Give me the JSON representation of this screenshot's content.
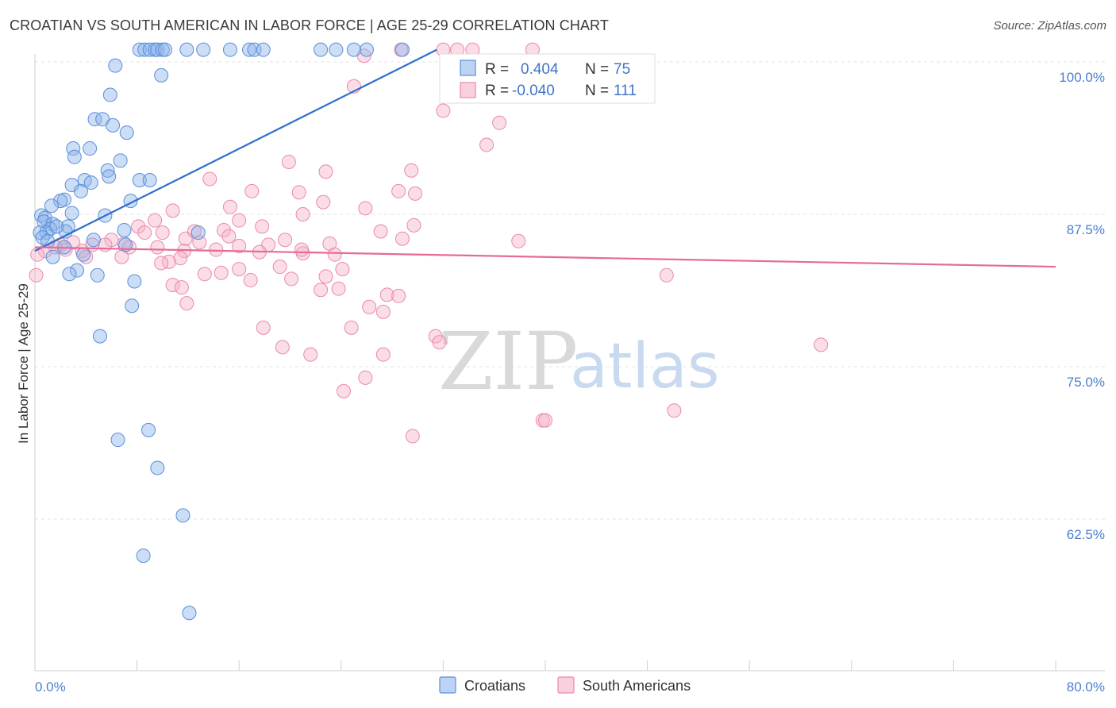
{
  "title": "CROATIAN VS SOUTH AMERICAN IN LABOR FORCE | AGE 25-29 CORRELATION CHART",
  "source": "Source: ZipAtlas.com",
  "watermark": {
    "zip": "ZIP",
    "atlas": "atlas"
  },
  "chart_data": {
    "type": "scatter",
    "ylabel": "In Labor Force | Age 25-29",
    "xlim": [
      0,
      80
    ],
    "ylim": [
      50,
      102
    ],
    "x_tick_labels": [
      "0.0%",
      "80.0%"
    ],
    "y_ticks": [
      {
        "value": 62.5,
        "label": "62.5%"
      },
      {
        "value": 75.0,
        "label": "75.0%"
      },
      {
        "value": 87.5,
        "label": "87.5%"
      },
      {
        "value": 100.0,
        "label": "100.0%"
      }
    ],
    "series": [
      {
        "name": "Croatians",
        "color": "#8fb4ea",
        "stroke": "#5a8fd8",
        "line_color": "#2f6fce",
        "R": "0.404",
        "N": "75",
        "trend": {
          "x": [
            0,
            31.5
          ],
          "y": [
            84.5,
            101.0
          ]
        },
        "points": [
          [
            8.2,
            101
          ],
          [
            8.6,
            101
          ],
          [
            9.0,
            101
          ],
          [
            9.4,
            101
          ],
          [
            9.6,
            101
          ],
          [
            10.0,
            101
          ],
          [
            10.2,
            101
          ],
          [
            11.9,
            101
          ],
          [
            13.2,
            101
          ],
          [
            15.3,
            101
          ],
          [
            16.8,
            101
          ],
          [
            17.2,
            101
          ],
          [
            17.9,
            101
          ],
          [
            22.4,
            101
          ],
          [
            23.6,
            101
          ],
          [
            25.0,
            101
          ],
          [
            26.0,
            101
          ],
          [
            28.8,
            101
          ],
          [
            6.3,
            99.7
          ],
          [
            9.9,
            98.9
          ],
          [
            5.9,
            97.3
          ],
          [
            4.7,
            95.3
          ],
          [
            5.3,
            95.3
          ],
          [
            6.1,
            94.8
          ],
          [
            7.2,
            94.2
          ],
          [
            3.0,
            92.9
          ],
          [
            4.3,
            92.9
          ],
          [
            3.1,
            92.2
          ],
          [
            6.7,
            91.9
          ],
          [
            5.7,
            91.1
          ],
          [
            5.8,
            90.6
          ],
          [
            3.9,
            90.3
          ],
          [
            4.4,
            90.1
          ],
          [
            8.2,
            90.3
          ],
          [
            9.0,
            90.3
          ],
          [
            2.9,
            89.9
          ],
          [
            3.6,
            89.4
          ],
          [
            7.5,
            88.6
          ],
          [
            2.3,
            88.7
          ],
          [
            2.0,
            88.6
          ],
          [
            1.3,
            88.2
          ],
          [
            2.9,
            87.6
          ],
          [
            0.5,
            87.4
          ],
          [
            0.8,
            87.2
          ],
          [
            5.5,
            87.4
          ],
          [
            0.7,
            86.9
          ],
          [
            1.4,
            86.7
          ],
          [
            2.6,
            86.5
          ],
          [
            1.2,
            86.3
          ],
          [
            2.4,
            86.1
          ],
          [
            7.0,
            86.2
          ],
          [
            12.8,
            86.0
          ],
          [
            0.9,
            86.0
          ],
          [
            1.7,
            86.5
          ],
          [
            0.4,
            86.0
          ],
          [
            0.6,
            85.6
          ],
          [
            1.0,
            85.3
          ],
          [
            2.3,
            84.8
          ],
          [
            4.6,
            85.4
          ],
          [
            7.1,
            85.0
          ],
          [
            3.8,
            84.2
          ],
          [
            1.4,
            84.0
          ],
          [
            3.3,
            82.9
          ],
          [
            2.7,
            82.6
          ],
          [
            4.9,
            82.5
          ],
          [
            7.8,
            82.0
          ],
          [
            7.6,
            80.0
          ],
          [
            5.1,
            77.5
          ],
          [
            6.5,
            69.0
          ],
          [
            8.9,
            69.8
          ],
          [
            9.6,
            66.7
          ],
          [
            11.6,
            62.8
          ],
          [
            8.5,
            59.5
          ],
          [
            12.1,
            54.8
          ]
        ]
      },
      {
        "name": "South Americans",
        "color": "#f6b3c9",
        "stroke": "#ea89aa",
        "line_color": "#e56b98",
        "R": "-0.040",
        "N": "111",
        "trend": {
          "x": [
            0,
            80
          ],
          "y": [
            84.8,
            83.2
          ]
        },
        "points": [
          [
            28.7,
            101
          ],
          [
            32.0,
            101
          ],
          [
            33.1,
            101
          ],
          [
            34.3,
            101
          ],
          [
            39.0,
            101
          ],
          [
            25.8,
            100.5
          ],
          [
            25.0,
            98.0
          ],
          [
            32.0,
            96.0
          ],
          [
            36.4,
            95.0
          ],
          [
            35.4,
            93.2
          ],
          [
            19.9,
            91.8
          ],
          [
            29.5,
            91.1
          ],
          [
            22.8,
            91.0
          ],
          [
            13.7,
            90.4
          ],
          [
            28.5,
            89.4
          ],
          [
            17.0,
            89.4
          ],
          [
            20.7,
            89.3
          ],
          [
            29.8,
            89.2
          ],
          [
            22.6,
            88.5
          ],
          [
            15.3,
            88.1
          ],
          [
            25.9,
            88.0
          ],
          [
            10.8,
            87.8
          ],
          [
            21.0,
            87.5
          ],
          [
            16.0,
            87.0
          ],
          [
            9.4,
            87.0
          ],
          [
            29.7,
            86.6
          ],
          [
            8.1,
            86.5
          ],
          [
            17.8,
            86.5
          ],
          [
            27.1,
            86.1
          ],
          [
            8.6,
            86.0
          ],
          [
            12.5,
            86.1
          ],
          [
            14.8,
            86.2
          ],
          [
            10.0,
            86.0
          ],
          [
            15.2,
            85.7
          ],
          [
            11.8,
            85.5
          ],
          [
            28.8,
            85.5
          ],
          [
            19.6,
            85.4
          ],
          [
            18.3,
            85.0
          ],
          [
            16.0,
            84.9
          ],
          [
            7.0,
            85.1
          ],
          [
            7.4,
            84.8
          ],
          [
            6.0,
            85.4
          ],
          [
            5.5,
            85.0
          ],
          [
            4.5,
            85.0
          ],
          [
            3.0,
            85.2
          ],
          [
            2.0,
            85.0
          ],
          [
            3.7,
            84.5
          ],
          [
            4.0,
            84.0
          ],
          [
            2.4,
            84.6
          ],
          [
            1.6,
            84.8
          ],
          [
            0.8,
            84.5
          ],
          [
            0.2,
            84.2
          ],
          [
            23.1,
            85.1
          ],
          [
            37.9,
            85.3
          ],
          [
            9.6,
            84.8
          ],
          [
            11.7,
            84.5
          ],
          [
            14.2,
            84.6
          ],
          [
            21.0,
            84.3
          ],
          [
            17.6,
            84.4
          ],
          [
            20.9,
            84.6
          ],
          [
            23.5,
            84.2
          ],
          [
            12.9,
            85.2
          ],
          [
            6.8,
            84.0
          ],
          [
            11.4,
            83.9
          ],
          [
            10.5,
            83.6
          ],
          [
            9.9,
            83.5
          ],
          [
            19.2,
            83.2
          ],
          [
            24.1,
            83.0
          ],
          [
            16.0,
            83.0
          ],
          [
            22.8,
            82.4
          ],
          [
            13.3,
            82.6
          ],
          [
            14.6,
            82.7
          ],
          [
            20.1,
            82.2
          ],
          [
            16.9,
            82.1
          ],
          [
            10.8,
            81.7
          ],
          [
            23.8,
            81.4
          ],
          [
            11.5,
            81.5
          ],
          [
            22.4,
            81.3
          ],
          [
            27.6,
            80.9
          ],
          [
            28.5,
            80.8
          ],
          [
            11.9,
            80.2
          ],
          [
            26.2,
            79.9
          ],
          [
            27.3,
            79.5
          ],
          [
            17.9,
            78.2
          ],
          [
            24.8,
            78.2
          ],
          [
            31.4,
            77.5
          ],
          [
            31.7,
            77.0
          ],
          [
            49.5,
            82.5
          ],
          [
            19.4,
            76.6
          ],
          [
            21.6,
            76.0
          ],
          [
            27.3,
            76.0
          ],
          [
            61.6,
            76.8
          ],
          [
            25.9,
            74.1
          ],
          [
            24.2,
            73.0
          ],
          [
            39.8,
            70.6
          ],
          [
            40.0,
            70.6
          ],
          [
            50.1,
            71.4
          ],
          [
            29.6,
            69.3
          ],
          [
            0.1,
            82.5
          ]
        ]
      }
    ]
  },
  "legend": {
    "position": "bottom-center",
    "items": [
      "Croatians",
      "South Americans"
    ]
  },
  "stats_box": {
    "position": "top-center",
    "rows": [
      {
        "r_label": "R =",
        "r_value": "0.404",
        "n_label": "N =",
        "n_value": "75"
      },
      {
        "r_label": "R =",
        "r_value": "-0.040",
        "n_label": "N =",
        "n_value": "111"
      }
    ]
  }
}
